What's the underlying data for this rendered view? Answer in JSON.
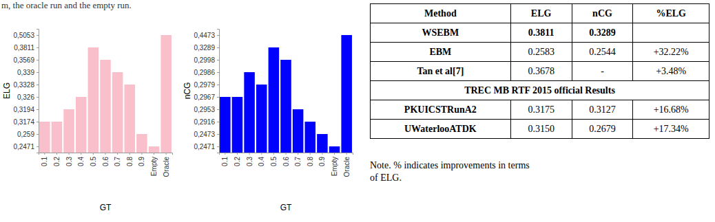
{
  "text": "m, the oracle run and the empty run.",
  "chart_data": [
    {
      "type": "bar",
      "categories": [
        "0.1",
        "0.2",
        "0.3",
        "0.4",
        "0.5",
        "0.6",
        "0.7",
        "0.8",
        "0.9",
        "Empty",
        "Oracle"
      ],
      "values": [
        0.3174,
        0.3174,
        0.3194,
        0.326,
        0.3811,
        0.3569,
        0.339,
        0.3328,
        0.259,
        0.2471,
        0.5053
      ],
      "color": "#f9c0cb",
      "x_label": "GT",
      "y_label": "ELG",
      "yticks": [
        {
          "value": 0.2471,
          "label": "0,2471"
        },
        {
          "value": 0.259,
          "label": "0,259"
        },
        {
          "value": 0.3174,
          "label": "0,3174"
        },
        {
          "value": 0.3194,
          "label": "0,3194"
        },
        {
          "value": 0.326,
          "label": "0,326"
        },
        {
          "value": 0.3328,
          "label": "0,3328"
        },
        {
          "value": 0.339,
          "label": "0,339"
        },
        {
          "value": 0.3569,
          "label": "0,3569"
        },
        {
          "value": 0.3811,
          "label": "0,3811"
        },
        {
          "value": 0.5053,
          "label": "0,5053"
        }
      ]
    },
    {
      "type": "bar",
      "categories": [
        "0.1",
        "0.2",
        "0.3",
        "0.4",
        "0.5",
        "0.6",
        "0.7",
        "0.8",
        "0.9",
        "Empty",
        "Oracle"
      ],
      "values": [
        0.2967,
        0.2967,
        0.2986,
        0.2979,
        0.3289,
        0.2998,
        0.2953,
        0.2916,
        0.2473,
        0.2471,
        0.4473
      ],
      "color": "#0000ff",
      "x_label": "GT",
      "y_label": "nCG",
      "yticks": [
        {
          "value": 0.2471,
          "label": "0,2471"
        },
        {
          "value": 0.2473,
          "label": "0,2473"
        },
        {
          "value": 0.2916,
          "label": "0,2916"
        },
        {
          "value": 0.2953,
          "label": "0,2953"
        },
        {
          "value": 0.2967,
          "label": "0,2967"
        },
        {
          "value": 0.2979,
          "label": "0,2979"
        },
        {
          "value": 0.2986,
          "label": "0,2986"
        },
        {
          "value": 0.2998,
          "label": "0,2998"
        },
        {
          "value": 0.3289,
          "label": "0,3289"
        },
        {
          "value": 0.4473,
          "label": "0,4473"
        }
      ]
    }
  ],
  "table": {
    "header": [
      "Method",
      "ELG",
      "nCG",
      "%ELG"
    ],
    "rows": [
      [
        "WSEBM",
        "0.3811",
        "0.3289",
        null
      ],
      [
        "EBM",
        "0.2583",
        "0.2544",
        "+32.22%"
      ],
      [
        "Tan et al[7]",
        "0.3678",
        "-",
        "+3.48%"
      ],
      [
        "TREC MB RTF 2015 official Results"
      ],
      [
        "PKUICSTRunA2",
        "0.3175",
        "0.3127",
        "+16.68%"
      ],
      [
        "UWaterlooATDK",
        "0.3150",
        "0.2679",
        "+17.34%"
      ]
    ]
  },
  "note": [
    "Note. % indicates improvements in terms",
    "of ELG."
  ]
}
